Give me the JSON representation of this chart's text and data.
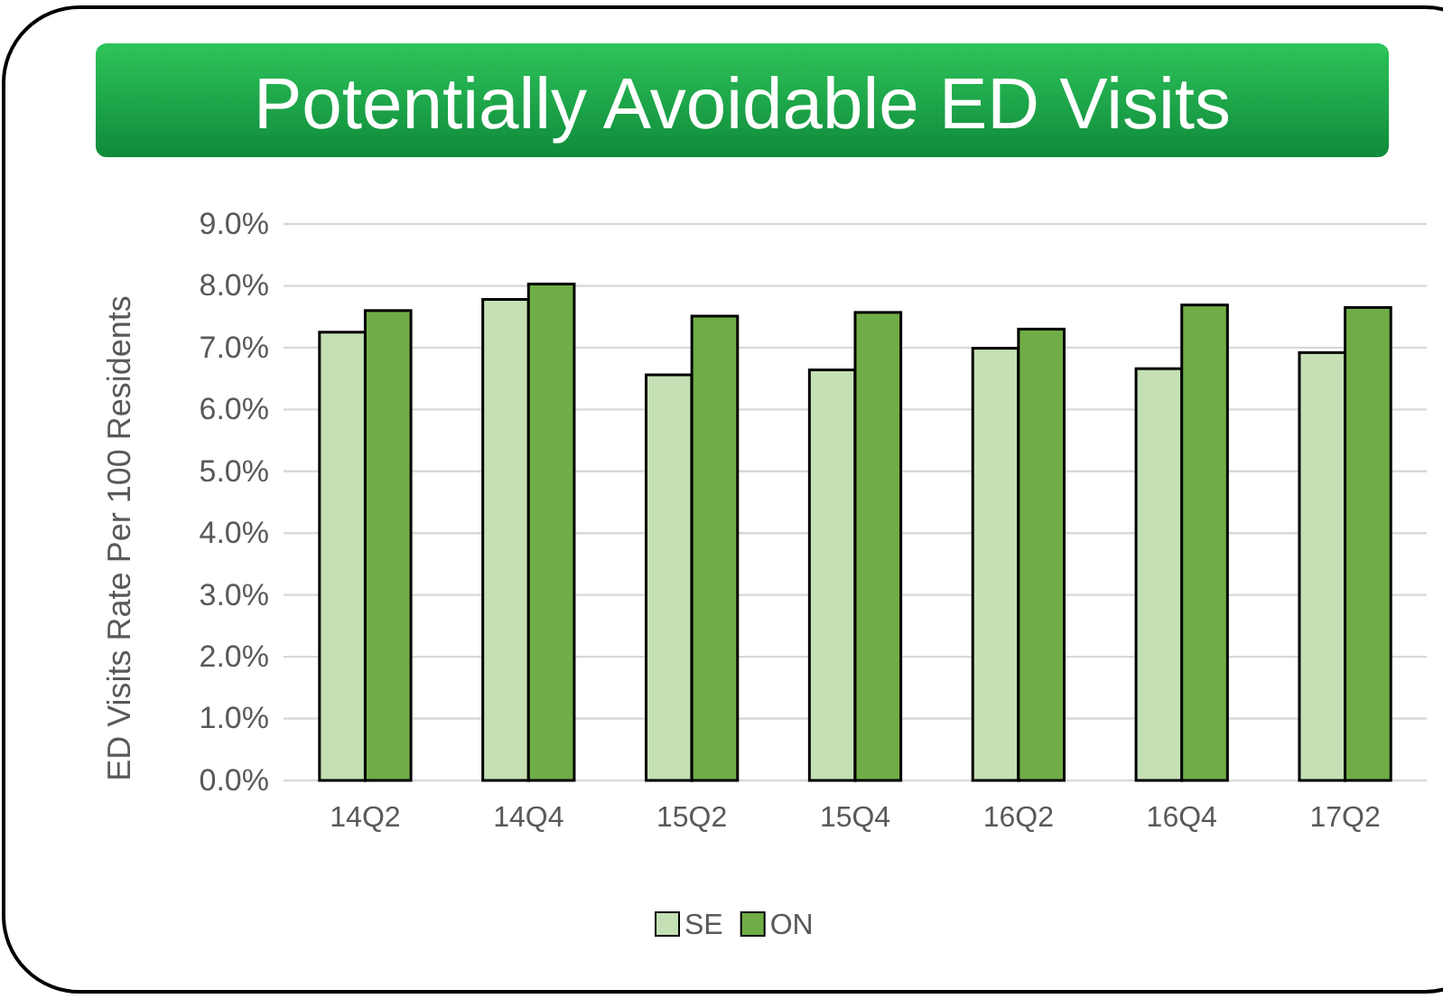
{
  "chart_data": {
    "type": "bar",
    "title": "Potentially Avoidable ED Visits",
    "ylabel": "ED Visits Rate Per 100 Residents",
    "categories": [
      "14Q2",
      "14Q4",
      "15Q2",
      "15Q4",
      "16Q2",
      "16Q4",
      "17Q2"
    ],
    "series": [
      {
        "name": "SE",
        "color": "#c5e0b4",
        "values": [
          7.25,
          7.78,
          6.56,
          6.64,
          6.99,
          6.66,
          6.92
        ]
      },
      {
        "name": "ON",
        "color": "#70ad47",
        "values": [
          7.6,
          8.03,
          7.51,
          7.57,
          7.3,
          7.69,
          7.65
        ]
      }
    ],
    "ylim": [
      0,
      9
    ],
    "yticks": [
      {
        "value": 0,
        "label": "0.0%"
      },
      {
        "value": 1,
        "label": "1.0%"
      },
      {
        "value": 2,
        "label": "2.0%"
      },
      {
        "value": 3,
        "label": "3.0%"
      },
      {
        "value": 4,
        "label": "4.0%"
      },
      {
        "value": 5,
        "label": "5.0%"
      },
      {
        "value": 6,
        "label": "6.0%"
      },
      {
        "value": 7,
        "label": "7.0%"
      },
      {
        "value": 8,
        "label": "8.0%"
      },
      {
        "value": 9,
        "label": "9.0%"
      }
    ],
    "grid": "y",
    "legend": "bottom"
  }
}
